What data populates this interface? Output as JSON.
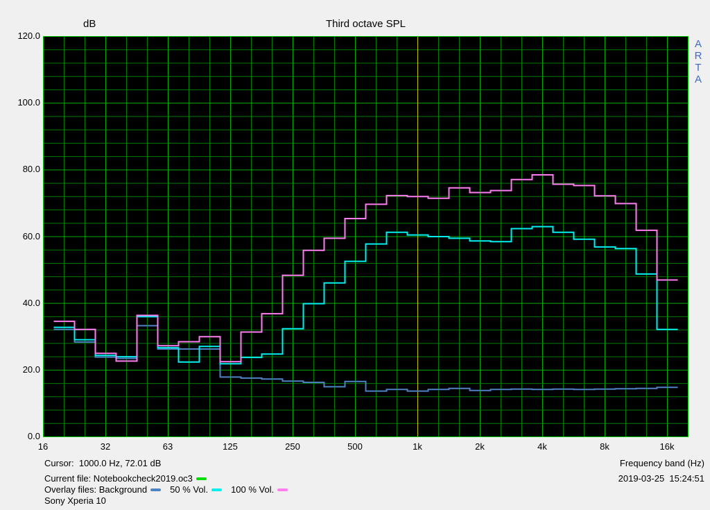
{
  "title": "Third octave SPL",
  "y_axis": {
    "unit": "dB",
    "ticks": [
      "120.0",
      "100.0",
      "80.0",
      "60.0",
      "40.0",
      "20.0",
      "0.0"
    ],
    "min": 0,
    "max": 120,
    "minor_step": 4,
    "major_step": 20
  },
  "x_axis": {
    "label": "Frequency band (Hz)",
    "ticks": [
      "16",
      "32",
      "63",
      "125",
      "250",
      "500",
      "1k",
      "2k",
      "4k",
      "8k",
      "16k"
    ]
  },
  "watermark": "ARTA",
  "footer": {
    "cursor": "Cursor:  1000.0 Hz, 72.01 dB",
    "current_file": "Current file: Notebookcheck2019.oc3",
    "overlay_label": "Overlay files: Background",
    "overlay_50": "50 % Vol.",
    "overlay_100": "100 % Vol.",
    "device": "Sony Xperia 10",
    "frequency_label": "Frequency band (Hz)",
    "datetime": "2019-03-25  15:24:51"
  },
  "colors": {
    "page_bg": "#f0f0f0",
    "plot_bg": "#000000",
    "grid_minor": "#007d00",
    "grid_major": "#00ad00",
    "border": "#00c800",
    "cursor_line": "#c8c400",
    "current_file_dash": "#00dd00",
    "background_series": "#4e82c4",
    "vol50_series": "#00f0f0",
    "vol100_series": "#ff7df0",
    "watermark_text": "#4169c8"
  },
  "chart_data": {
    "type": "line",
    "style": "third-octave-step",
    "title": "Third octave SPL",
    "xlabel": "Frequency band (Hz)",
    "ylabel": "dB",
    "ylim": [
      0,
      120
    ],
    "grid": true,
    "x_octave_labels": [
      "16",
      "32",
      "63",
      "125",
      "250",
      "500",
      "1k",
      "2k",
      "4k",
      "8k",
      "16k"
    ],
    "categories": [
      "20",
      "25",
      "31.5",
      "40",
      "50",
      "63",
      "80",
      "100",
      "125",
      "160",
      "200",
      "250",
      "315",
      "400",
      "500",
      "630",
      "800",
      "1k",
      "1.25k",
      "1.6k",
      "2k",
      "2.5k",
      "3.15k",
      "4k",
      "5k",
      "6.3k",
      "8k",
      "10k",
      "12.5k",
      "16k"
    ],
    "series": [
      {
        "name": "Background",
        "color": "#4e82c4",
        "values": [
          32.2,
          28.4,
          23.9,
          23.5,
          33.3,
          26.3,
          26.3,
          26.3,
          17.9,
          17.6,
          17.3,
          16.7,
          16.3,
          15.0,
          16.6,
          13.7,
          14.2,
          13.7,
          14.2,
          14.5,
          13.9,
          14.2,
          14.3,
          14.2,
          14.3,
          14.2,
          14.3,
          14.4,
          14.5,
          14.8
        ]
      },
      {
        "name": "50 % Vol.",
        "color": "#00f0f0",
        "values": [
          32.8,
          29.1,
          24.4,
          24.0,
          36.0,
          26.7,
          22.4,
          27.1,
          21.9,
          23.8,
          24.8,
          32.4,
          39.9,
          46.1,
          52.6,
          57.8,
          61.3,
          60.5,
          60.0,
          59.5,
          58.7,
          58.5,
          62.4,
          63.0,
          61.3,
          59.2,
          56.9,
          56.4,
          48.8,
          32.2
        ]
      },
      {
        "name": "100 % Vol.",
        "color": "#ff7df0",
        "values": [
          34.6,
          32.2,
          25.0,
          22.7,
          36.4,
          27.3,
          28.5,
          30.0,
          22.5,
          31.4,
          36.9,
          48.4,
          55.9,
          59.5,
          65.4,
          69.7,
          72.3,
          72.0,
          71.5,
          74.6,
          73.2,
          73.8,
          77.1,
          78.5,
          75.7,
          75.3,
          72.2,
          69.9,
          61.9,
          47.0
        ]
      }
    ],
    "cursor": {
      "freq_hz": 1000.0,
      "value_db": 72.01,
      "band_index_at_cursor": 17
    }
  }
}
